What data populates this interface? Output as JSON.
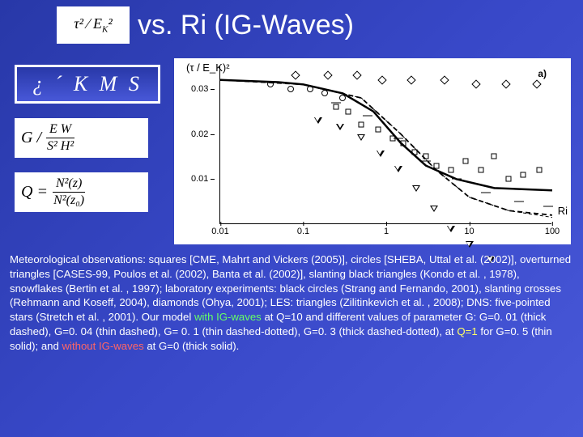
{
  "title": {
    "formula_tex": "τ² / E_K²",
    "text": "vs.  Ri   (IG-Waves)"
  },
  "kms_box": "¿  ´  K M S",
  "g_formula": {
    "lhs": "G /",
    "num": "E W",
    "den": "S² H²"
  },
  "q_formula": {
    "lhs": "Q =",
    "num": "N²(z)",
    "den": "N²(z₀)"
  },
  "chart": {
    "type": "scatter-with-model-curves",
    "panel_label": "a)",
    "ylabel": "(τ / E_K)²",
    "xlabel": "Ri",
    "x_scale": "log",
    "xlim": [
      0.01,
      100
    ],
    "xticks": [
      0.01,
      0.1,
      1,
      10,
      100
    ],
    "ylim": [
      0,
      0.035
    ],
    "yticks": [
      0.01,
      0.02,
      0.03
    ],
    "background_color": "#ffffff",
    "axis_color": "#000000",
    "curves": [
      {
        "label": "thick-solid",
        "stroke": "#000000",
        "width": 2.5,
        "dash": "none",
        "points": [
          [
            0.01,
            0.032
          ],
          [
            0.05,
            0.0315
          ],
          [
            0.1,
            0.031
          ],
          [
            0.3,
            0.029
          ],
          [
            0.7,
            0.025
          ],
          [
            1.5,
            0.018
          ],
          [
            3,
            0.013
          ],
          [
            7,
            0.01
          ],
          [
            20,
            0.008
          ],
          [
            100,
            0.0075
          ]
        ]
      },
      {
        "label": "thick-dashed",
        "stroke": "#000000",
        "width": 1.8,
        "dash": "6,4",
        "points": [
          [
            0.01,
            0.032
          ],
          [
            0.1,
            0.031
          ],
          [
            0.5,
            0.028
          ],
          [
            1.5,
            0.02
          ],
          [
            4,
            0.012
          ],
          [
            10,
            0.006
          ],
          [
            30,
            0.003
          ],
          [
            100,
            0.002
          ]
        ]
      },
      {
        "label": "thin-dashed",
        "stroke": "#000000",
        "width": 1,
        "dash": "4,3",
        "points": [
          [
            0.01,
            0.032
          ],
          [
            0.1,
            0.031
          ],
          [
            0.5,
            0.028
          ],
          [
            1.5,
            0.02
          ],
          [
            4,
            0.012
          ],
          [
            10,
            0.006
          ],
          [
            30,
            0.003
          ],
          [
            100,
            0.0015
          ]
        ]
      }
    ],
    "markers": {
      "squares": {
        "glyph": "sq",
        "pts": [
          [
            0.25,
            0.026
          ],
          [
            0.35,
            0.025
          ],
          [
            0.5,
            0.022
          ],
          [
            0.8,
            0.021
          ],
          [
            1.2,
            0.019
          ],
          [
            1.6,
            0.018
          ],
          [
            2.2,
            0.016
          ],
          [
            3,
            0.015
          ],
          [
            4,
            0.013
          ],
          [
            6,
            0.012
          ],
          [
            9,
            0.014
          ],
          [
            14,
            0.012
          ],
          [
            20,
            0.015
          ],
          [
            30,
            0.01
          ],
          [
            45,
            0.011
          ],
          [
            70,
            0.012
          ]
        ]
      },
      "circles": {
        "glyph": "circ",
        "pts": [
          [
            0.04,
            0.031
          ],
          [
            0.07,
            0.03
          ],
          [
            0.12,
            0.03
          ],
          [
            0.18,
            0.029
          ],
          [
            0.3,
            0.028
          ]
        ]
      },
      "diamonds": {
        "glyph": "diam",
        "pts": [
          [
            0.08,
            0.033
          ],
          [
            0.2,
            0.033
          ],
          [
            0.45,
            0.033
          ],
          [
            0.9,
            0.032
          ],
          [
            2,
            0.032
          ],
          [
            5,
            0.032
          ],
          [
            12,
            0.031
          ],
          [
            28,
            0.031
          ],
          [
            65,
            0.031
          ]
        ]
      },
      "tri_down": {
        "glyph": "tri",
        "pts": [
          [
            0.15,
            0.023
          ],
          [
            0.28,
            0.023
          ],
          [
            0.5,
            0.022
          ],
          [
            0.85,
            0.02
          ],
          [
            1.4,
            0.018
          ],
          [
            2.3,
            0.015
          ],
          [
            3.8,
            0.012
          ],
          [
            6,
            0.009
          ],
          [
            10,
            0.007
          ],
          [
            18,
            0.005
          ]
        ]
      },
      "dashes": {
        "glyph": "dash",
        "pts": [
          [
            0.25,
            0.027
          ],
          [
            0.6,
            0.024
          ],
          [
            1.4,
            0.019
          ],
          [
            3,
            0.014
          ],
          [
            7,
            0.01
          ],
          [
            16,
            0.007
          ],
          [
            40,
            0.005
          ],
          [
            90,
            0.004
          ]
        ]
      }
    }
  },
  "caption": {
    "t1": "Meteorological observations: squares [CME, Mahrt and Vickers (2005)], circles [SHEBA, Uttal et al. (2002)], overturned triangles [CASES-99, Poulos et al. (2002), Banta et al. (2002)], slanting black triangles (Kondo et al. , 1978), snowflakes (Bertin et al. , 1997); laboratory experiments: black circles (Strang and Fernando, 2001), slanting crosses (Rehmann and Koseff, 2004), diamonds (Ohya, 2001); LES: triangles (Zilitinkevich et al. , 2008); DNS: five-pointed stars (Stretch et al. , 2001). Our model ",
    "g1": " with IG-waves ",
    "t2": "at Q=10 and different values of parameter G:  G=0. 01 (thick dashed), G=0. 04 (thin dashed), G= 0. 1 (thin dashed-dotted), G=0. 3 (thick dashed-dotted), at ",
    "y1": " Q=1 ",
    "t3": "for G=0. 5 (thin solid); and ",
    "r1": "without IG-waves",
    "t4": " at  G=0 (thick solid)."
  },
  "colors": {
    "bg_start": "#2838a8",
    "bg_end": "#4858d8",
    "text_white": "#ffffff",
    "green": "#66ff66",
    "yellow": "#ffff66",
    "red": "#ff6666"
  }
}
